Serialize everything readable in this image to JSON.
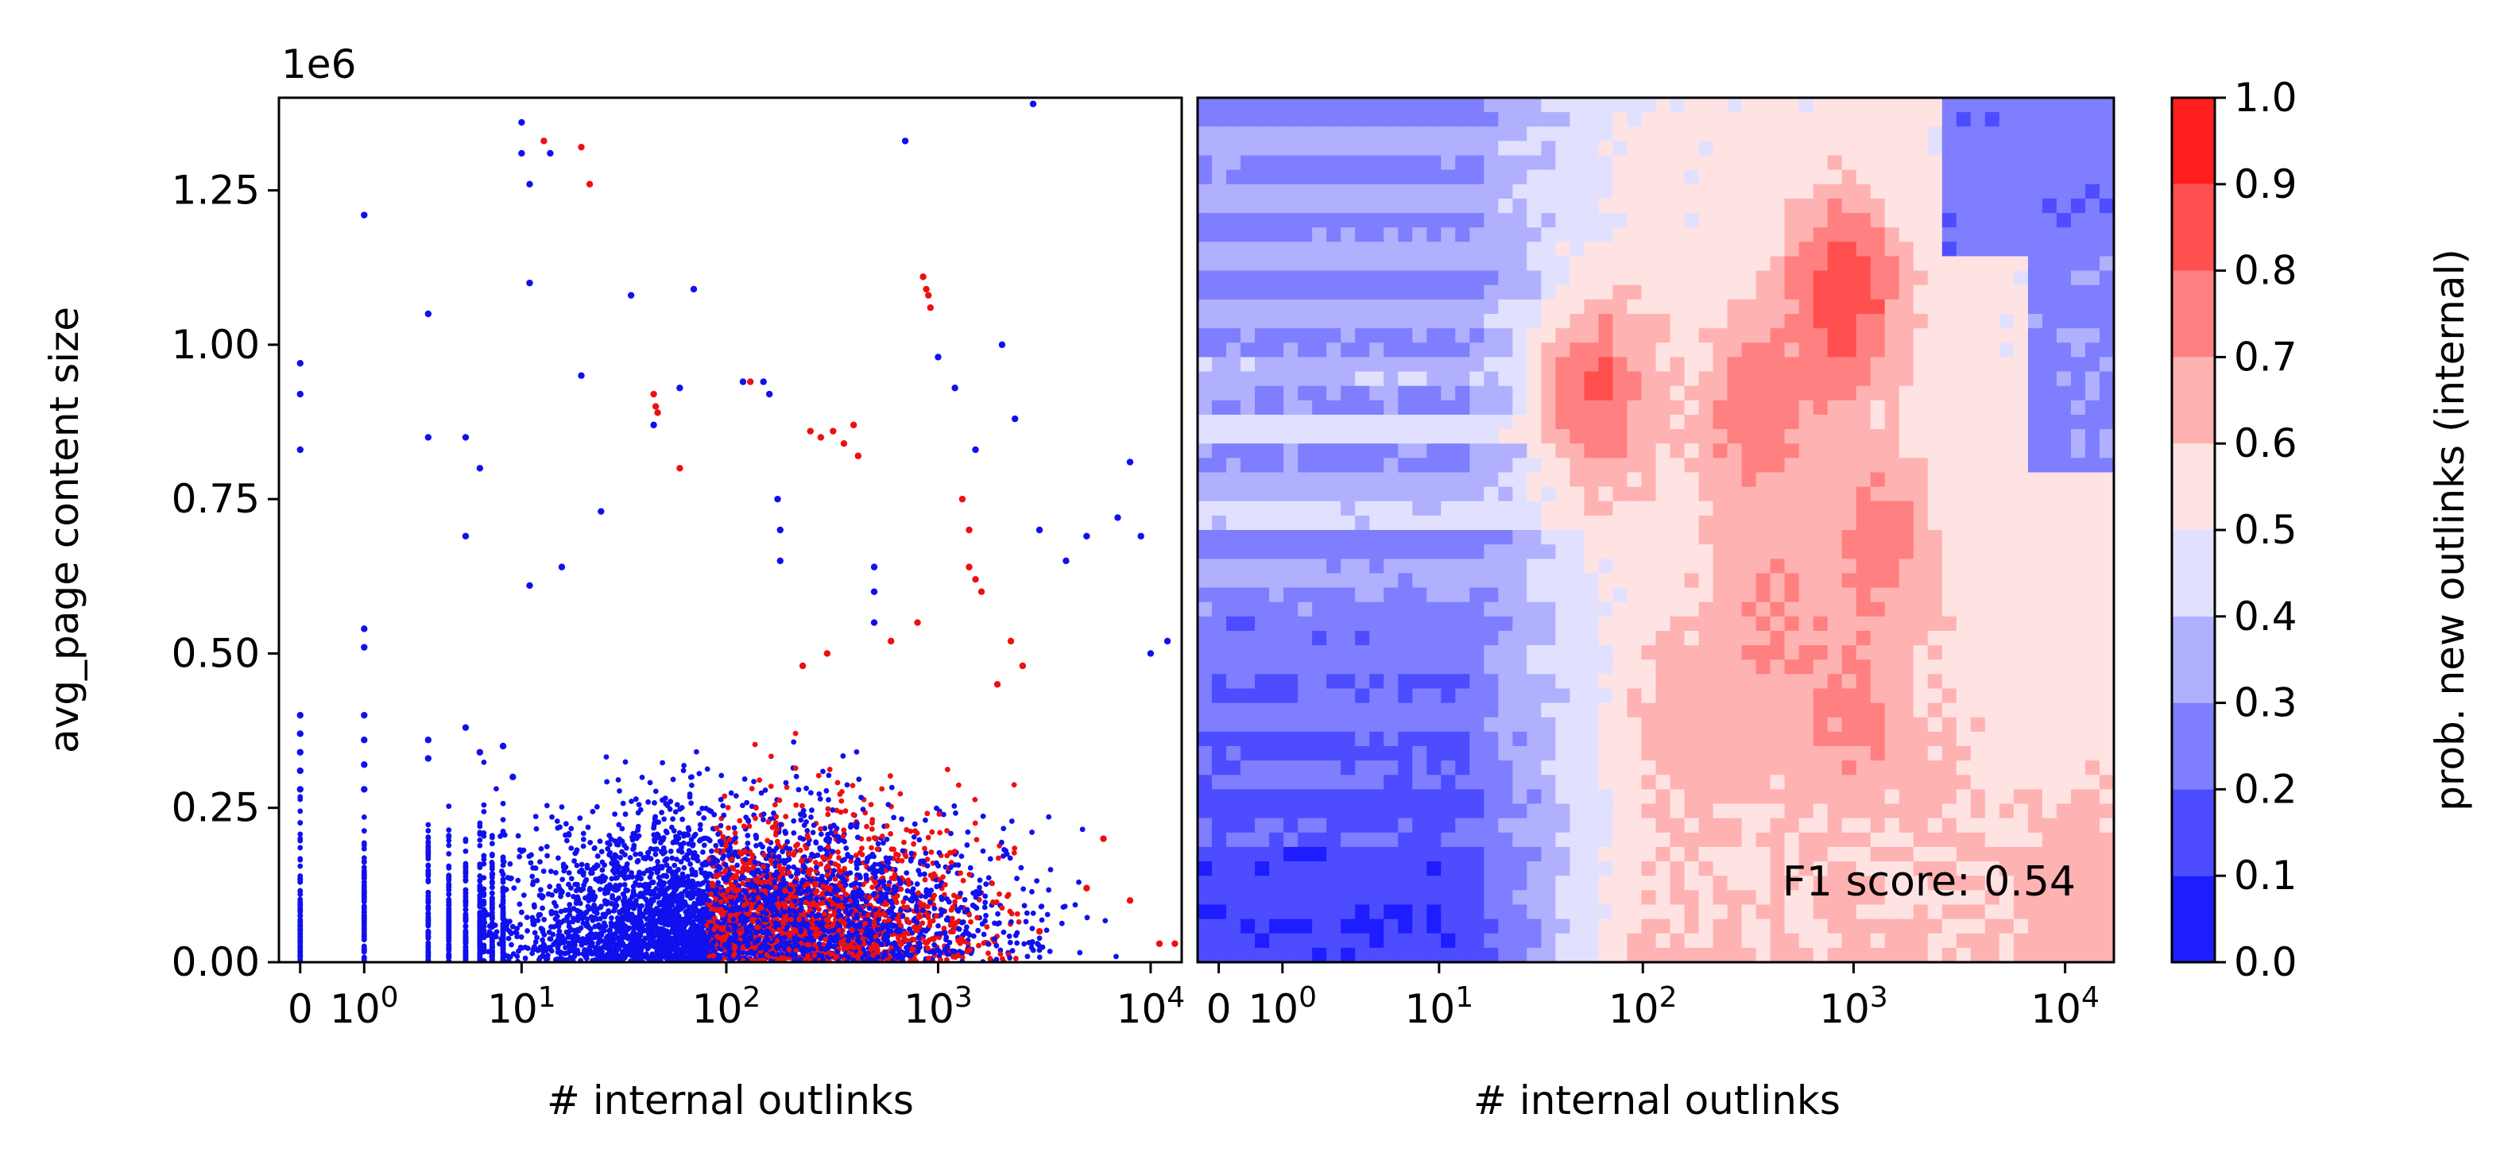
{
  "chart_data": [
    {
      "type": "scatter",
      "xlabel": "# internal outlinks",
      "ylabel": "avg_page content size",
      "x_scale": "symlog",
      "x_ticks": [
        {
          "value": 0,
          "label": "0"
        },
        {
          "value": 1,
          "base": "10",
          "exp": "0"
        },
        {
          "value": 10,
          "base": "10",
          "exp": "1"
        },
        {
          "value": 100,
          "base": "10",
          "exp": "2"
        },
        {
          "value": 1000,
          "base": "10",
          "exp": "3"
        },
        {
          "value": 10000,
          "base": "10",
          "exp": "4"
        }
      ],
      "y_offset_label": "1e6",
      "ylim": [
        0,
        1.4
      ],
      "y_ticks": [
        {
          "value": 0.0,
          "label": "0.00"
        },
        {
          "value": 0.25,
          "label": "0.25"
        },
        {
          "value": 0.5,
          "label": "0.50"
        },
        {
          "value": 0.75,
          "label": "0.75"
        },
        {
          "value": 1.0,
          "label": "1.00"
        },
        {
          "value": 1.25,
          "label": "1.25"
        }
      ],
      "series": [
        {
          "color": "#1010ee",
          "points": [
            [
              0,
              0.97
            ],
            [
              0,
              0.92
            ],
            [
              0,
              0.83
            ],
            [
              0,
              0.4
            ],
            [
              0,
              0.37
            ],
            [
              0,
              0.34
            ],
            [
              0,
              0.31
            ],
            [
              0,
              0.28
            ],
            [
              1,
              1.21
            ],
            [
              1,
              0.54
            ],
            [
              1,
              0.51
            ],
            [
              1,
              0.4
            ],
            [
              1,
              0.36
            ],
            [
              1,
              0.32
            ],
            [
              1,
              0.28
            ],
            [
              3,
              1.05
            ],
            [
              3,
              0.85
            ],
            [
              3,
              0.36
            ],
            [
              3,
              0.33
            ],
            [
              5,
              0.85
            ],
            [
              5,
              0.69
            ],
            [
              5,
              0.38
            ],
            [
              6,
              0.8
            ],
            [
              6,
              0.34
            ],
            [
              8,
              0.35
            ],
            [
              9,
              0.3
            ],
            [
              10,
              1.36
            ],
            [
              10,
              1.31
            ],
            [
              11,
              1.26
            ],
            [
              11,
              1.1
            ],
            [
              11,
              0.61
            ],
            [
              14,
              1.31
            ],
            [
              16,
              0.64
            ],
            [
              20,
              0.95
            ],
            [
              25,
              0.73
            ],
            [
              35,
              1.08
            ],
            [
              45,
              0.87
            ],
            [
              60,
              0.93
            ],
            [
              70,
              1.09
            ],
            [
              120,
              0.94
            ],
            [
              150,
              0.94
            ],
            [
              160,
              0.92
            ],
            [
              175,
              0.75
            ],
            [
              180,
              0.7
            ],
            [
              180,
              0.65
            ],
            [
              500,
              0.64
            ],
            [
              500,
              0.6
            ],
            [
              500,
              0.55
            ],
            [
              700,
              1.33
            ],
            [
              1000,
              0.98
            ],
            [
              1200,
              0.93
            ],
            [
              1500,
              0.83
            ],
            [
              2000,
              1.0
            ],
            [
              2300,
              0.88
            ],
            [
              3000,
              0.7
            ],
            [
              4000,
              0.65
            ],
            [
              5000,
              0.69
            ],
            [
              7000,
              0.72
            ],
            [
              8000,
              0.81
            ],
            [
              9000,
              0.69
            ],
            [
              10000,
              0.5
            ],
            [
              12000,
              0.52
            ],
            [
              2800,
              1.39
            ]
          ]
        },
        {
          "color": "#ee1010",
          "points": [
            [
              13,
              1.33
            ],
            [
              20,
              1.32
            ],
            [
              22,
              1.26
            ],
            [
              45,
              0.92
            ],
            [
              46,
              0.9
            ],
            [
              47,
              0.89
            ],
            [
              60,
              0.8
            ],
            [
              130,
              0.94
            ],
            [
              250,
              0.86
            ],
            [
              280,
              0.85
            ],
            [
              320,
              0.86
            ],
            [
              360,
              0.84
            ],
            [
              400,
              0.87
            ],
            [
              420,
              0.82
            ],
            [
              850,
              1.11
            ],
            [
              880,
              1.09
            ],
            [
              900,
              1.08
            ],
            [
              920,
              1.06
            ],
            [
              1300,
              0.75
            ],
            [
              1400,
              0.7
            ],
            [
              1400,
              0.64
            ],
            [
              1500,
              0.62
            ],
            [
              1600,
              0.6
            ],
            [
              2200,
              0.52
            ],
            [
              2500,
              0.48
            ],
            [
              1900,
              0.45
            ],
            [
              800,
              0.55
            ],
            [
              600,
              0.52
            ],
            [
              300,
              0.5
            ],
            [
              230,
              0.48
            ],
            [
              8000,
              0.1
            ],
            [
              11000,
              0.03
            ],
            [
              13000,
              0.03
            ],
            [
              5000,
              0.12
            ],
            [
              3000,
              0.05
            ],
            [
              6000,
              0.2
            ]
          ]
        }
      ]
    },
    {
      "type": "heatmap",
      "xlabel": "# internal outlinks",
      "x_scale": "symlog",
      "x_ticks": [
        {
          "value": 0,
          "label": "0"
        },
        {
          "value": 1,
          "base": "10",
          "exp": "0"
        },
        {
          "value": 10,
          "base": "10",
          "exp": "1"
        },
        {
          "value": 100,
          "base": "10",
          "exp": "2"
        },
        {
          "value": 1000,
          "base": "10",
          "exp": "3"
        },
        {
          "value": 10000,
          "base": "10",
          "exp": "4"
        }
      ],
      "annotation": "F1 score: 0.54",
      "colorbar": {
        "label": "prob. new outlinks (internal)",
        "levels": [
          0.0,
          0.1,
          0.2,
          0.3,
          0.4,
          0.5,
          0.6,
          0.7,
          0.8,
          0.9,
          1.0
        ],
        "tick_labels": [
          "0.0",
          "0.1",
          "0.2",
          "0.3",
          "0.4",
          "0.5",
          "0.6",
          "0.7",
          "0.8",
          "0.9",
          "1.0"
        ],
        "colors": [
          "#1d1dff",
          "#4d4dff",
          "#7e7eff",
          "#b0b0ff",
          "#e1e1ff",
          "#ffe3e3",
          "#ffb2b2",
          "#ff8080",
          "#ff4f4f",
          "#ff1f1f"
        ]
      },
      "hotspots": [
        {
          "x": 60,
          "y": 0.92,
          "p": 0.82
        },
        {
          "x": 350,
          "y": 0.88,
          "p": 0.78
        },
        {
          "x": 900,
          "y": 1.08,
          "p": 0.88
        },
        {
          "x": 1300,
          "y": 0.68,
          "p": 0.75
        },
        {
          "x": 400,
          "y": 0.55,
          "p": 0.72
        },
        {
          "x": 180,
          "y": 0.38,
          "p": 0.68
        },
        {
          "x": 1000,
          "y": 0.4,
          "p": 0.74
        },
        {
          "x": 2500,
          "y": 0.25,
          "p": 0.62
        },
        {
          "x": 14000,
          "y": 0.1,
          "p": 0.66
        }
      ]
    }
  ]
}
